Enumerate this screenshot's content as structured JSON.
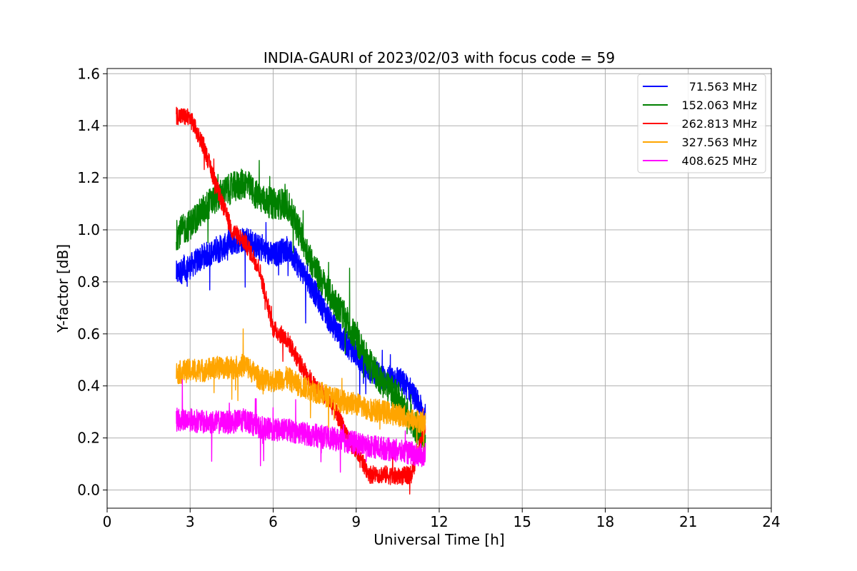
{
  "chart_data": {
    "type": "line",
    "title": "INDIA-GAURI of 2023/02/03 with focus code = 59",
    "xlabel": "Universal Time [h]",
    "ylabel": "Y-factor [dB]",
    "xlim": [
      0,
      24
    ],
    "ylim": [
      -0.07,
      1.62
    ],
    "xticks": [
      0,
      3,
      6,
      9,
      12,
      15,
      18,
      21,
      24
    ],
    "yticks": [
      0.0,
      0.2,
      0.4,
      0.6,
      0.8,
      1.0,
      1.2,
      1.4,
      1.6
    ],
    "xtick_labels": [
      "0",
      "3",
      "6",
      "9",
      "12",
      "15",
      "18",
      "21",
      "24"
    ],
    "ytick_labels": [
      "0.0",
      "0.2",
      "0.4",
      "0.6",
      "0.8",
      "1.0",
      "1.2",
      "1.4",
      "1.6"
    ],
    "grid": true,
    "legend_position": "top-right",
    "series": [
      {
        "name": "71.563 MHz",
        "color": "#0000ff",
        "noise": 0.05,
        "x": [
          2.5,
          3.0,
          3.5,
          4.0,
          4.5,
          5.0,
          5.5,
          6.0,
          6.5,
          7.0,
          7.5,
          8.0,
          8.5,
          9.0,
          9.5,
          10.0,
          10.5,
          11.0,
          11.5
        ],
        "y": [
          0.83,
          0.86,
          0.9,
          0.92,
          0.95,
          0.97,
          0.93,
          0.9,
          0.93,
          0.85,
          0.76,
          0.66,
          0.58,
          0.52,
          0.46,
          0.43,
          0.43,
          0.38,
          0.28
        ]
      },
      {
        "name": "152.063 MHz",
        "color": "#008000",
        "noise": 0.06,
        "x": [
          2.5,
          3.0,
          3.5,
          4.0,
          4.5,
          5.0,
          5.5,
          6.0,
          6.5,
          7.0,
          7.5,
          8.0,
          8.5,
          9.0,
          9.5,
          10.0,
          10.5,
          11.0,
          11.5
        ],
        "y": [
          0.98,
          1.02,
          1.08,
          1.13,
          1.16,
          1.18,
          1.12,
          1.1,
          1.1,
          0.98,
          0.85,
          0.76,
          0.68,
          0.58,
          0.48,
          0.41,
          0.36,
          0.27,
          0.18
        ]
      },
      {
        "name": "262.813 MHz",
        "color": "#ff0000",
        "noise": 0.035,
        "x": [
          2.5,
          3.0,
          3.5,
          4.0,
          4.5,
          5.0,
          5.5,
          6.0,
          6.5,
          7.0,
          7.5,
          8.0,
          8.5,
          9.0,
          9.5,
          10.0,
          10.5,
          11.0,
          11.5
        ],
        "y": [
          1.44,
          1.43,
          1.32,
          1.15,
          1.0,
          0.95,
          0.85,
          0.62,
          0.58,
          0.48,
          0.4,
          0.35,
          0.25,
          0.14,
          0.06,
          0.06,
          0.05,
          0.06,
          0.25
        ]
      },
      {
        "name": "327.563 MHz",
        "color": "#ffa500",
        "noise": 0.045,
        "x": [
          2.5,
          3.0,
          3.5,
          4.0,
          4.5,
          5.0,
          5.5,
          6.0,
          6.5,
          7.0,
          7.5,
          8.0,
          8.5,
          9.0,
          9.5,
          10.0,
          10.5,
          11.0,
          11.5
        ],
        "y": [
          0.45,
          0.46,
          0.46,
          0.47,
          0.47,
          0.48,
          0.43,
          0.42,
          0.43,
          0.4,
          0.38,
          0.36,
          0.34,
          0.33,
          0.31,
          0.3,
          0.29,
          0.27,
          0.26
        ]
      },
      {
        "name": "408.625 MHz",
        "color": "#ff00ff",
        "noise": 0.045,
        "x": [
          2.5,
          3.0,
          3.5,
          4.0,
          4.5,
          5.0,
          5.5,
          6.0,
          6.5,
          7.0,
          7.5,
          8.0,
          8.5,
          9.0,
          9.5,
          10.0,
          10.5,
          11.0,
          11.5
        ],
        "y": [
          0.27,
          0.27,
          0.26,
          0.26,
          0.26,
          0.27,
          0.24,
          0.23,
          0.23,
          0.22,
          0.21,
          0.2,
          0.19,
          0.18,
          0.17,
          0.16,
          0.15,
          0.14,
          0.13
        ]
      }
    ]
  }
}
